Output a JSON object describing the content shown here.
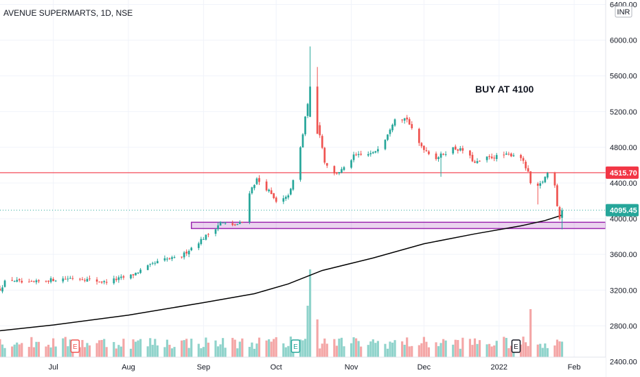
{
  "chart_data": {
    "type": "candlestick",
    "title": "AVENUE SUPERMARTS, 1D, NSE",
    "currency": "INR",
    "annotation": "BUY AT 4100",
    "y_axis_position": "right",
    "ylim": [
      2250,
      6450
    ],
    "y_ticks": [
      "6400.00",
      "6000.00",
      "5600.00",
      "5200.00",
      "4800.00",
      "4400.00",
      "4000.00",
      "3600.00",
      "3200.00",
      "2800.00",
      "2400.00"
    ],
    "x_ticks": [
      {
        "label": "Jul",
        "date": "2021-07-01"
      },
      {
        "label": "Aug",
        "date": "2021-08-01"
      },
      {
        "label": "Sep",
        "date": "2021-09-01"
      },
      {
        "label": "Oct",
        "date": "2021-10-01"
      },
      {
        "label": "Nov",
        "date": "2021-11-01"
      },
      {
        "label": "Dec",
        "date": "2021-12-01"
      },
      {
        "label": "2022",
        "date": "2022-01-01"
      },
      {
        "label": "Feb",
        "date": "2022-02-01"
      }
    ],
    "x_range": [
      "2021-06-09",
      "2022-02-14"
    ],
    "horizontal_line": {
      "value": 4515.7,
      "label": "4515.70",
      "color": "#f23645"
    },
    "last_price": {
      "value": 4095.45,
      "label": "4095.45",
      "color": "#26a69a"
    },
    "support_zone": {
      "low": 3890,
      "high": 3960,
      "start": "2021-08-27",
      "end": "2022-02-14",
      "color": "#9c27b0"
    },
    "moving_average": {
      "color": "#000000",
      "points": [
        {
          "date": "2021-06-09",
          "value": 2745
        },
        {
          "date": "2021-07-01",
          "value": 2810
        },
        {
          "date": "2021-08-01",
          "value": 2920
        },
        {
          "date": "2021-09-01",
          "value": 3060
        },
        {
          "date": "2021-09-22",
          "value": 3160
        },
        {
          "date": "2021-10-06",
          "value": 3270
        },
        {
          "date": "2021-10-20",
          "value": 3420
        },
        {
          "date": "2021-11-10",
          "value": 3560
        },
        {
          "date": "2021-12-01",
          "value": 3720
        },
        {
          "date": "2021-12-22",
          "value": 3830
        },
        {
          "date": "2022-01-10",
          "value": 3920
        },
        {
          "date": "2022-01-20",
          "value": 3980
        },
        {
          "date": "2022-01-27",
          "value": 4040
        }
      ]
    },
    "colors": {
      "up": "#26a69a",
      "down": "#ef5350",
      "vol_up": "#8fd3cb",
      "vol_down": "#f4a6a6"
    },
    "earnings_events": [
      {
        "date": "2021-07-10",
        "label": "E",
        "color": "#ef5350"
      },
      {
        "date": "2021-10-09",
        "label": "E",
        "color": "#26a69a"
      },
      {
        "date": "2022-01-08",
        "label": "E",
        "color": "#131722"
      }
    ],
    "anchors": [
      [
        "2021-06-09",
        3210
      ],
      [
        "2021-06-12",
        3330
      ],
      [
        "2021-06-20",
        3270
      ],
      [
        "2021-06-28",
        3310
      ],
      [
        "2021-07-10",
        3340
      ],
      [
        "2021-07-22",
        3290
      ],
      [
        "2021-08-02",
        3360
      ],
      [
        "2021-08-08",
        3450
      ],
      [
        "2021-08-15",
        3540
      ],
      [
        "2021-08-22",
        3560
      ],
      [
        "2021-08-29",
        3720
      ],
      [
        "2021-09-05",
        3870
      ],
      [
        "2021-09-08",
        3960
      ],
      [
        "2021-09-13",
        3920
      ],
      [
        "2021-09-18",
        3970
      ],
      [
        "2021-09-20",
        4300
      ],
      [
        "2021-09-23",
        4440
      ],
      [
        "2021-09-28",
        4310
      ],
      [
        "2021-10-01",
        4180
      ],
      [
        "2021-10-05",
        4230
      ],
      [
        "2021-10-07",
        4320
      ],
      [
        "2021-10-10",
        4640
      ],
      [
        "2021-10-12",
        4950
      ],
      [
        "2021-10-15",
        5480
      ],
      [
        "2021-10-16",
        5300
      ],
      [
        "2021-10-19",
        4950
      ],
      [
        "2021-10-21",
        4640
      ],
      [
        "2021-10-25",
        4500
      ],
      [
        "2021-10-29",
        4560
      ],
      [
        "2021-11-02",
        4700
      ],
      [
        "2021-11-10",
        4730
      ],
      [
        "2021-11-15",
        4900
      ],
      [
        "2021-11-19",
        5130
      ],
      [
        "2021-11-24",
        5120
      ],
      [
        "2021-11-28",
        4870
      ],
      [
        "2021-12-02",
        4760
      ],
      [
        "2021-12-06",
        4680
      ],
      [
        "2021-12-13",
        4790
      ],
      [
        "2021-12-18",
        4760
      ],
      [
        "2021-12-22",
        4620
      ],
      [
        "2021-12-27",
        4680
      ],
      [
        "2022-01-03",
        4710
      ],
      [
        "2022-01-08",
        4720
      ],
      [
        "2022-01-10",
        4690
      ],
      [
        "2022-01-13",
        4510
      ],
      [
        "2022-01-15",
        4280
      ],
      [
        "2022-01-19",
        4420
      ],
      [
        "2022-01-21",
        4510
      ],
      [
        "2022-01-24",
        4390
      ],
      [
        "2022-01-25",
        4150
      ],
      [
        "2022-01-26",
        4010
      ],
      [
        "2022-01-27",
        4095
      ]
    ]
  }
}
